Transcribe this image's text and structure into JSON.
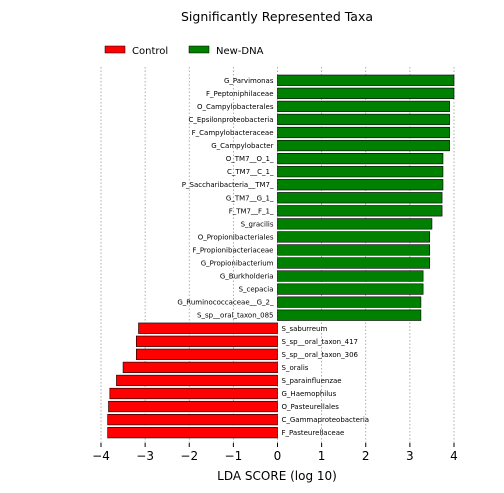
{
  "chart_data": {
    "type": "bar",
    "orientation": "horizontal",
    "title": "Significantly Represented Taxa",
    "xlabel": "LDA SCORE (log 10)",
    "ylabel": "",
    "xlim": [
      -4,
      4
    ],
    "xticks": [
      -4,
      -3,
      -2,
      -1,
      0,
      1,
      2,
      3,
      4
    ],
    "xtick_labels": [
      "−4",
      "−3",
      "−2",
      "−1",
      "0",
      "1",
      "2",
      "3",
      "4"
    ],
    "grid": "x dotted",
    "legend_position": "top-left",
    "colors": {
      "Control": "#ff0000",
      "New-DNA": "#008000"
    },
    "series": [
      {
        "name": "Control",
        "color": "#ff0000"
      },
      {
        "name": "New-DNA",
        "color": "#008000"
      }
    ],
    "bars": [
      {
        "label": "G_Parvimonas",
        "value": 4.0,
        "group": "New-DNA"
      },
      {
        "label": "F_Peptoniphilaceae",
        "value": 4.0,
        "group": "New-DNA"
      },
      {
        "label": "O_Campylobacterales",
        "value": 3.9,
        "group": "New-DNA"
      },
      {
        "label": "C_Epsilonproteobacteria",
        "value": 3.9,
        "group": "New-DNA"
      },
      {
        "label": "F_Campylobacteraceae",
        "value": 3.9,
        "group": "New-DNA"
      },
      {
        "label": "G_Campylobacter",
        "value": 3.9,
        "group": "New-DNA"
      },
      {
        "label": "O_TM7__O_1_",
        "value": 3.75,
        "group": "New-DNA"
      },
      {
        "label": "C_TM7__C_1_",
        "value": 3.75,
        "group": "New-DNA"
      },
      {
        "label": "P_Saccharibacteria__TM7_",
        "value": 3.75,
        "group": "New-DNA"
      },
      {
        "label": "G_TM7__G_1_",
        "value": 3.73,
        "group": "New-DNA"
      },
      {
        "label": "F_TM7__F_1_",
        "value": 3.73,
        "group": "New-DNA"
      },
      {
        "label": "S_gracilis",
        "value": 3.5,
        "group": "New-DNA"
      },
      {
        "label": "O_Propionibacteriales",
        "value": 3.45,
        "group": "New-DNA"
      },
      {
        "label": "F_Propionibacteriaceae",
        "value": 3.45,
        "group": "New-DNA"
      },
      {
        "label": "G_Propionibacterium",
        "value": 3.45,
        "group": "New-DNA"
      },
      {
        "label": "G_Burkholderia",
        "value": 3.3,
        "group": "New-DNA"
      },
      {
        "label": "S_cepacia",
        "value": 3.3,
        "group": "New-DNA"
      },
      {
        "label": "G_Ruminococcaceae__G_2_",
        "value": 3.25,
        "group": "New-DNA"
      },
      {
        "label": "S_sp__oral_taxon_085",
        "value": 3.25,
        "group": "New-DNA"
      },
      {
        "label": "S_saburreum",
        "value": -3.15,
        "group": "Control"
      },
      {
        "label": "S_sp__oral_taxon_417",
        "value": -3.2,
        "group": "Control"
      },
      {
        "label": "S_sp__oral_taxon_306",
        "value": -3.2,
        "group": "Control"
      },
      {
        "label": "S_oralis",
        "value": -3.5,
        "group": "Control"
      },
      {
        "label": "S_parainfluenzae",
        "value": -3.65,
        "group": "Control"
      },
      {
        "label": "G_Haemophilus",
        "value": -3.8,
        "group": "Control"
      },
      {
        "label": "O_Pasteurellales",
        "value": -3.83,
        "group": "Control"
      },
      {
        "label": "C_Gammaproteobacteria",
        "value": -3.85,
        "group": "Control"
      },
      {
        "label": "F_Pasteurellaceae",
        "value": -3.85,
        "group": "Control"
      }
    ]
  }
}
